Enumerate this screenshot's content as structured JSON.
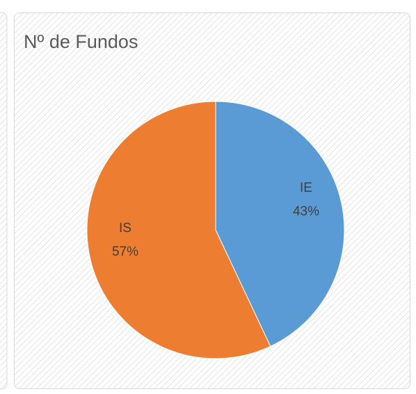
{
  "chart_data": {
    "type": "pie",
    "title": "Nº de Fundos",
    "categories": [
      "IE",
      "IS"
    ],
    "values": [
      43,
      57
    ],
    "value_labels": [
      "43%",
      "57%"
    ],
    "colors": [
      "#5b9bd5",
      "#ed7d31"
    ]
  }
}
